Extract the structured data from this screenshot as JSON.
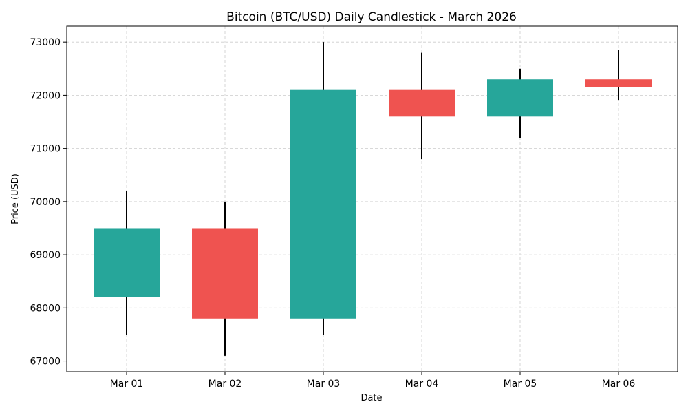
{
  "chart_data": {
    "type": "candlestick",
    "title": "Bitcoin (BTC/USD) Daily Candlestick - March 2026",
    "xlabel": "Date",
    "ylabel": "Price (USD)",
    "ylim": [
      66800,
      73300
    ],
    "yticks": [
      67000,
      68000,
      69000,
      70000,
      71000,
      72000,
      73000
    ],
    "grid": true,
    "categories": [
      "Mar 01",
      "Mar 02",
      "Mar 03",
      "Mar 04",
      "Mar 05",
      "Mar 06"
    ],
    "series": [
      {
        "date": "Mar 01",
        "open": 68200,
        "high": 70200,
        "low": 67500,
        "close": 69500
      },
      {
        "date": "Mar 02",
        "open": 69500,
        "high": 70000,
        "low": 67100,
        "close": 67800
      },
      {
        "date": "Mar 03",
        "open": 67800,
        "high": 73000,
        "low": 67500,
        "close": 72100
      },
      {
        "date": "Mar 04",
        "open": 72100,
        "high": 72800,
        "low": 70800,
        "close": 71600
      },
      {
        "date": "Mar 05",
        "open": 71600,
        "high": 72500,
        "low": 71200,
        "close": 72300
      },
      {
        "date": "Mar 06",
        "open": 72300,
        "high": 72850,
        "low": 71900,
        "close": 72150
      }
    ],
    "colors": {
      "up": "#26a69a",
      "down": "#ef5350",
      "wick": "#000000"
    }
  }
}
